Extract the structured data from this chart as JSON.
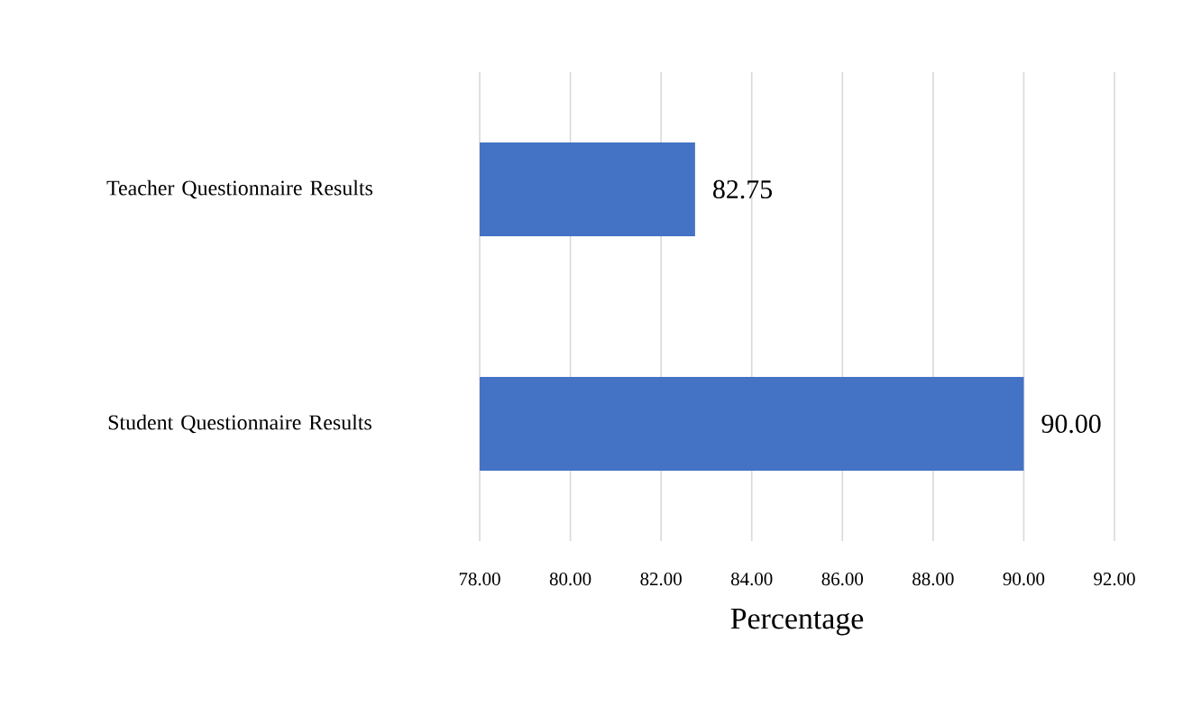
{
  "chart_data": {
    "type": "bar",
    "orientation": "horizontal",
    "categories": [
      "Teacher Questionnaire Results",
      "Student Questionnaire Results"
    ],
    "values": [
      82.75,
      90.0
    ],
    "value_labels": [
      "82.75",
      "90.00"
    ],
    "color": "#4472c4",
    "xlabel": "Percentage",
    "xlim": [
      78,
      92
    ],
    "xticks": [
      {
        "value": 78,
        "label": "78.00"
      },
      {
        "value": 80,
        "label": "80.00"
      },
      {
        "value": 82,
        "label": "82.00"
      },
      {
        "value": 84,
        "label": "84.00"
      },
      {
        "value": 86,
        "label": "86.00"
      },
      {
        "value": 88,
        "label": "88.00"
      },
      {
        "value": 90,
        "label": "90.00"
      },
      {
        "value": 92,
        "label": "92.00"
      }
    ],
    "grid": "x"
  }
}
